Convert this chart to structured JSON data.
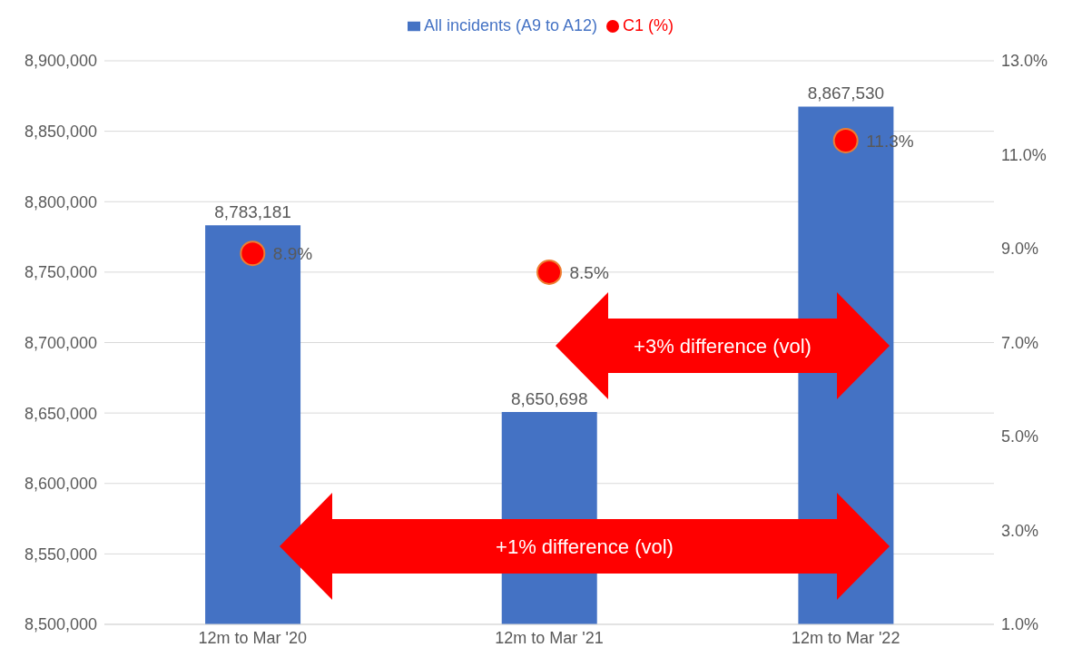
{
  "chart_data": {
    "type": "bar",
    "categories": [
      "12m to Mar '20",
      "12m to Mar '21",
      "12m to Mar '22"
    ],
    "series": [
      {
        "name": "All incidents (A9 to A12)",
        "color": "#4472c4",
        "values": [
          8783181,
          8650698,
          8867530
        ],
        "value_labels": [
          "8,783,181",
          "8,650,698",
          "8,867,530"
        ]
      },
      {
        "name": "C1 (%)",
        "type": "scatter",
        "axis": "y2",
        "color": "#ff0000",
        "values": [
          8.9,
          8.5,
          11.3
        ],
        "value_labels": [
          "8.9%",
          "8.5%",
          "11.3%"
        ]
      }
    ],
    "ylim": [
      8500000,
      8900000
    ],
    "yticks": [
      {
        "value": 8500000,
        "label": "8,500,000"
      },
      {
        "value": 8550000,
        "label": "8,550,000"
      },
      {
        "value": 8600000,
        "label": "8,600,000"
      },
      {
        "value": 8650000,
        "label": "8,650,000"
      },
      {
        "value": 8700000,
        "label": "8,700,000"
      },
      {
        "value": 8750000,
        "label": "8,750,000"
      },
      {
        "value": 8800000,
        "label": "8,800,000"
      },
      {
        "value": 8850000,
        "label": "8,850,000"
      },
      {
        "value": 8900000,
        "label": "8,900,000"
      }
    ],
    "y2lim": [
      1,
      13
    ],
    "y2ticks": [
      {
        "value": 1,
        "label": "1.0%"
      },
      {
        "value": 3,
        "label": "3.0%"
      },
      {
        "value": 5,
        "label": "5.0%"
      },
      {
        "value": 7,
        "label": "7.0%"
      },
      {
        "value": 9,
        "label": "9.0%"
      },
      {
        "value": 11,
        "label": "11.0%"
      },
      {
        "value": 13,
        "label": "13.0%"
      }
    ],
    "grid": "y",
    "legend": "top",
    "annotations": [
      "+3% difference (vol)",
      "+1% difference (vol)"
    ]
  }
}
